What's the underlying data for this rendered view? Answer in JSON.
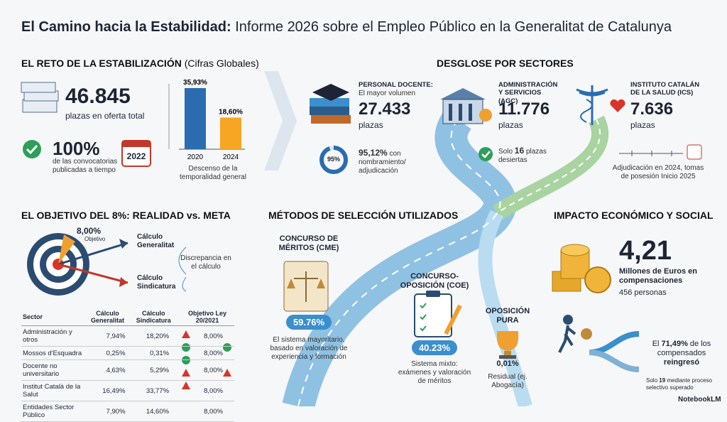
{
  "header": {
    "title_bold": "El Camino hacia la Estabilidad:",
    "title_rest": "Informe 2026 sobre el Empleo Público en la Generalitat de Catalunya"
  },
  "reto": {
    "heading": "EL RETO DE LA ESTABILIZACIÓN",
    "heading_note": "(Cifras Globales)",
    "total": "46.845",
    "total_label": "plazas en oferta total",
    "on_time": "100%",
    "on_time_label": "de las convocatorias publicadas a tiempo",
    "calendar_year": "2022",
    "chart": {
      "categories": [
        "2020",
        "2024"
      ],
      "values": [
        35.93,
        18.6
      ],
      "value_labels": [
        "35,93%",
        "18,60%"
      ],
      "caption": "Descenso de la temporalidad general"
    }
  },
  "sectores": {
    "heading": "DESGLOSE POR SECTORES",
    "docente": {
      "title": "PERSONAL DOCENTE:",
      "subtitle": "El mayor volumen",
      "value": "27.433",
      "unit": "plazas",
      "donut_label": "95%",
      "note": "95,12%",
      "note_rest": "con nombramiento/ adjudicación"
    },
    "agc": {
      "title": "ADMINISTRACIÓN Y SERVICIOS (AGC)",
      "value": "11.776",
      "unit": "plazas",
      "note_pre": "Solo",
      "note_num": "16",
      "note_post": "plazas desiertas"
    },
    "ics": {
      "title": "INSTITUTO CATALÁN DE LA SALUD (ICS)",
      "value": "7.636",
      "unit": "plazas",
      "note": "Adjudicación en 2024, tomas de posesión Inicio 2025"
    }
  },
  "objetivo": {
    "heading": "EL OBJETIVO DEL 8%: REALIDAD vs. META",
    "target_value": "8,00%",
    "target_label": "Objetivo",
    "arrow_1": "Cálculo Generalitat",
    "arrow_2": "Cálculo Sindicatura",
    "discrepancy": "Discrepancia en el cálculo",
    "table": {
      "columns": [
        "Sector",
        "Cálculo Generalitat",
        "Cálculo Sindicatura",
        "Objetivo Ley 20/2021"
      ],
      "rows": [
        [
          "Administración y otros",
          "7,94%",
          "18,20%",
          "8,00%"
        ],
        [
          "Mossos d'Esquadra",
          "0,25%",
          "0,31%",
          "8,00%"
        ],
        [
          "Docente no universitario",
          "4,63%",
          "5,29%",
          "8,00%"
        ],
        [
          "Institut Català de la Salut",
          "16,49%",
          "33,77%",
          "8,00%"
        ],
        [
          "Entidades Sector Público",
          "7,90%",
          "14,60%",
          "8,00%"
        ]
      ]
    }
  },
  "metodos": {
    "heading": "MÉTODOS DE SELECCIÓN UTILIZADOS",
    "items": [
      {
        "title": "CONCURSO DE MÉRITOS (CME)",
        "share": "59.76%",
        "description": "El sistema mayoritario, basado en valoración de experiencia y formación"
      },
      {
        "title": "CONCURSO-OPOSICIÓN (COE)",
        "share": "40.23%",
        "description": "Sistema mixto: exámenes y valoración de méritos"
      },
      {
        "title": "OPOSICIÓN PURA",
        "share": "0,01%",
        "description": "Residual (ej. Abogacía)"
      }
    ]
  },
  "impacto": {
    "heading": "IMPACTO ECONÓMICO Y SOCIAL",
    "amount": "4,21",
    "amount_label": "Millones de Euros en compensaciones",
    "people": "456 personas",
    "return_pre": "El",
    "return_pct": "71,49%",
    "return_mid": "de los compensados",
    "return_post": "reingresó",
    "selective_pre": "Solo",
    "selective_num": "19",
    "selective_post": "mediante proceso selectivo superado"
  },
  "footer": {
    "brand": "NotebookLM"
  }
}
